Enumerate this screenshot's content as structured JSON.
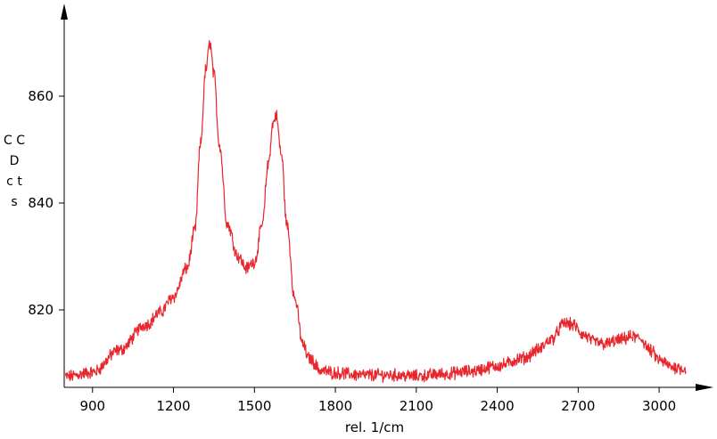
{
  "chart_data": {
    "type": "line",
    "xlabel": "rel. 1/cm",
    "ylabel": "CCD cts",
    "ylabel_lines": [
      "C C",
      "D",
      "c t",
      "s"
    ],
    "xlim": [
      795,
      3155
    ],
    "ylim": [
      805.5,
      876
    ],
    "x_ticks": [
      "900",
      "1200",
      "1500",
      "1800",
      "2100",
      "2400",
      "2700",
      "3000"
    ],
    "y_ticks": [
      "820",
      "840",
      "860"
    ],
    "grid": false,
    "line_color": "#e8262d",
    "series": [
      {
        "x": [
          800,
          900,
          1000,
          1100,
          1150,
          1200,
          1250,
          1280,
          1300,
          1320,
          1335,
          1350,
          1370,
          1400,
          1440,
          1470,
          1500,
          1530,
          1550,
          1570,
          1580,
          1600,
          1620,
          1650,
          1680,
          1700,
          1750,
          1800,
          1900,
          2000,
          2100,
          2200,
          2300,
          2400,
          2500,
          2550,
          2600,
          2650,
          2680,
          2720,
          2760,
          2800,
          2850,
          2900,
          2930,
          2970,
          3000,
          3050,
          3100
        ],
        "y": [
          807.5,
          808.3,
          812.5,
          817.3,
          819.5,
          822.5,
          827.8,
          835,
          851,
          865,
          870,
          864,
          851,
          836,
          830,
          827.8,
          829,
          836,
          847,
          855,
          856.5,
          849,
          836,
          822,
          813.5,
          811,
          808.6,
          808.2,
          807.8,
          807.8,
          807.6,
          808,
          808.5,
          809.5,
          811,
          812.5,
          814.5,
          817.5,
          817.2,
          815.3,
          814,
          813.6,
          814.3,
          815,
          814.6,
          812.3,
          810.6,
          809.3,
          809
        ]
      }
    ]
  }
}
